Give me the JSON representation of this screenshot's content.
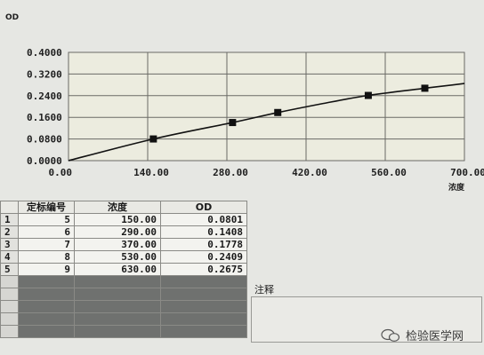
{
  "chart_data": {
    "type": "line",
    "ylabel": "OD",
    "xlabel": "浓度",
    "x_ticks": [
      "0.00",
      "140.00",
      "280.00",
      "420.00",
      "560.00",
      "700.00"
    ],
    "y_ticks": [
      "0.0000",
      "0.0800",
      "0.1600",
      "0.2400",
      "0.3200",
      "0.4000"
    ],
    "xlim": [
      0,
      700
    ],
    "ylim": [
      0,
      0.4
    ],
    "grid": true,
    "series": [
      {
        "points": [
          {
            "x": 150,
            "y": 0.0801
          },
          {
            "x": 290,
            "y": 0.1408
          },
          {
            "x": 370,
            "y": 0.1778
          },
          {
            "x": 530,
            "y": 0.2409
          },
          {
            "x": 630,
            "y": 0.2675
          }
        ]
      }
    ],
    "fit_curve": [
      {
        "x": 0,
        "y": 0.0
      },
      {
        "x": 150,
        "y": 0.0801
      },
      {
        "x": 290,
        "y": 0.1408
      },
      {
        "x": 370,
        "y": 0.1778
      },
      {
        "x": 450,
        "y": 0.211
      },
      {
        "x": 530,
        "y": 0.2409
      },
      {
        "x": 630,
        "y": 0.2675
      },
      {
        "x": 700,
        "y": 0.285
      }
    ]
  },
  "table": {
    "headers": [
      "定标编号",
      "浓度",
      "OD"
    ],
    "rows": [
      {
        "idx": "1",
        "id": "5",
        "conc": "150.00",
        "od": "0.0801"
      },
      {
        "idx": "2",
        "id": "6",
        "conc": "290.00",
        "od": "0.1408"
      },
      {
        "idx": "3",
        "id": "7",
        "conc": "370.00",
        "od": "0.1778"
      },
      {
        "idx": "4",
        "id": "8",
        "conc": "530.00",
        "od": "0.2409"
      },
      {
        "idx": "5",
        "id": "9",
        "conc": "630.00",
        "od": "0.2675"
      }
    ]
  },
  "notes": {
    "label": "注释"
  },
  "watermark": {
    "text": "检验医学网"
  }
}
